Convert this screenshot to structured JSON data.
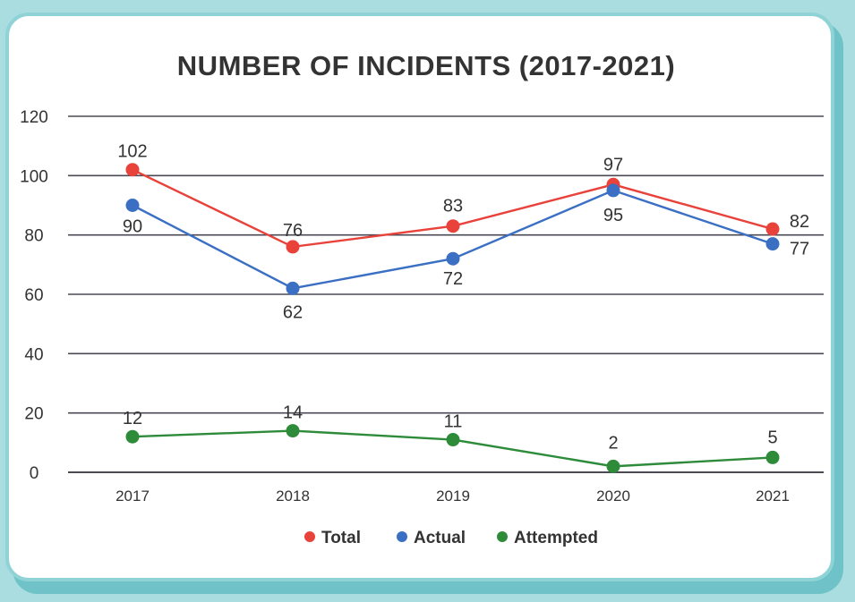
{
  "chart_data": {
    "type": "line",
    "title": "NUMBER OF INCIDENTS (2017-2021)",
    "categories": [
      "2017",
      "2018",
      "2019",
      "2020",
      "2021"
    ],
    "ylim": [
      0,
      120
    ],
    "yticks": [
      "0",
      "20",
      "40",
      "60",
      "80",
      "100",
      "120"
    ],
    "grid": true,
    "legend_placement": "bottom-center",
    "series": [
      {
        "name": "Total",
        "color": "#e8423b",
        "values": [
          102,
          76,
          83,
          97,
          82
        ]
      },
      {
        "name": "Actual",
        "color": "#3b6fc4",
        "values": [
          90,
          62,
          72,
          95,
          77
        ]
      },
      {
        "name": "Attempted",
        "color": "#2e8b3a",
        "values": [
          12,
          14,
          11,
          2,
          5
        ]
      }
    ]
  }
}
